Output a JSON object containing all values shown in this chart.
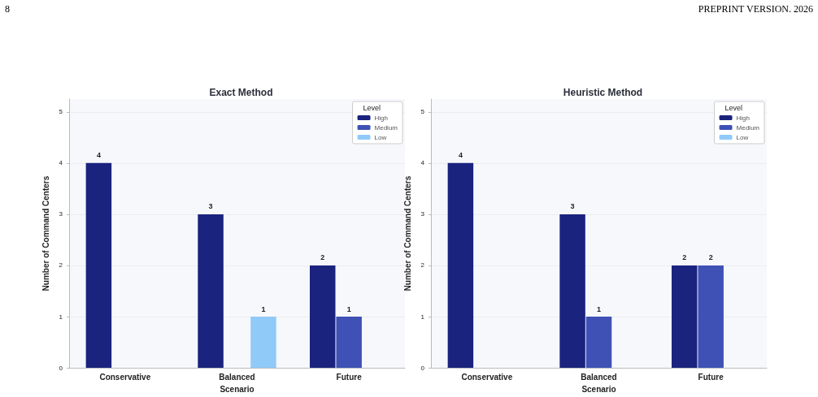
{
  "chart_data": [
    {
      "type": "bar",
      "title": "Exact Method",
      "xlabel": "Scenario",
      "ylabel": "Number of Command Centers",
      "legend_title": "Level",
      "categories": [
        "Conservative",
        "Balanced",
        "Future"
      ],
      "series": [
        {
          "name": "High",
          "color": "#1a237e",
          "values": [
            4,
            3,
            2
          ]
        },
        {
          "name": "Medium",
          "color": "#3f51b5",
          "values": [
            null,
            null,
            1
          ]
        },
        {
          "name": "Low",
          "color": "#90caf9",
          "values": [
            null,
            1,
            null
          ]
        }
      ],
      "ylim": [
        0,
        5.25
      ],
      "yticks": [
        0,
        1,
        2,
        3,
        4,
        5
      ],
      "grid": "y",
      "legend": "top right",
      "data_labels": true,
      "annotations": [
        "8"
      ]
    },
    {
      "type": "bar",
      "title": "Heuristic Method",
      "xlabel": "Scenario",
      "ylabel": "Number of Command Centers",
      "legend_title": "Level",
      "categories": [
        "Conservative",
        "Balanced",
        "Future"
      ],
      "series": [
        {
          "name": "High",
          "color": "#1a237e",
          "values": [
            4,
            3,
            2
          ]
        },
        {
          "name": "Medium",
          "color": "#3f51b5",
          "values": [
            null,
            1,
            2
          ]
        },
        {
          "name": "Low",
          "color": "#90caf9",
          "values": [
            null,
            null,
            null
          ]
        }
      ],
      "ylim": [
        0,
        5.25
      ],
      "yticks": [
        0,
        1,
        2,
        3,
        4,
        5
      ],
      "grid": "y",
      "legend": "top right",
      "data_labels": true,
      "annotations": [
        "PREPRINT VERSION. 2026"
      ]
    }
  ]
}
